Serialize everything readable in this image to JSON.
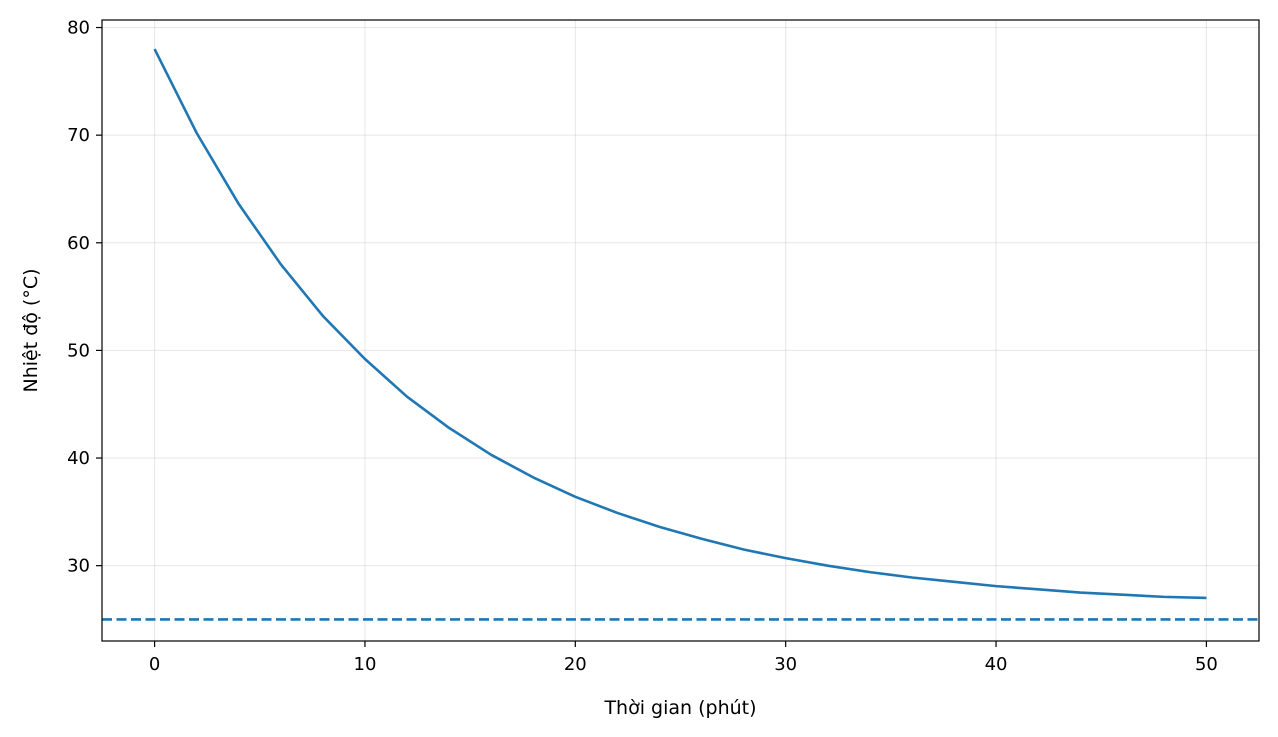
{
  "chart_data": {
    "type": "line",
    "title": "",
    "xlabel": "Thời gian (phút)",
    "ylabel": "Nhiệt độ (°C)",
    "xlim": [
      -2.5,
      52.5
    ],
    "ylim": [
      23.0,
      80.7
    ],
    "xticks": [
      0,
      10,
      20,
      30,
      40,
      50
    ],
    "xtick_labels": [
      "0",
      "10",
      "20",
      "30",
      "40",
      "50"
    ],
    "yticks": [
      30,
      40,
      50,
      60,
      70,
      80
    ],
    "ytick_labels": [
      "30",
      "40",
      "50",
      "60",
      "70",
      "80"
    ],
    "grid": true,
    "series": [
      {
        "color": "#1f77b4",
        "style": "solid",
        "x": [
          0,
          2,
          4,
          6,
          8,
          10,
          12,
          14,
          16,
          18,
          20,
          22,
          24,
          26,
          28,
          30,
          32,
          34,
          36,
          38,
          40,
          42,
          44,
          46,
          48,
          50
        ],
        "y": [
          78.0,
          70.2,
          63.6,
          58.0,
          53.2,
          49.2,
          45.7,
          42.8,
          40.3,
          38.2,
          36.4,
          34.9,
          33.6,
          32.5,
          31.5,
          30.7,
          30.0,
          29.4,
          28.9,
          28.5,
          28.1,
          27.8,
          27.5,
          27.3,
          27.1,
          27.0
        ]
      },
      {
        "color": "#1f77b4",
        "style": "dashed",
        "x": [
          -2.5,
          52.5
        ],
        "y": [
          25.0,
          25.0
        ]
      }
    ]
  }
}
